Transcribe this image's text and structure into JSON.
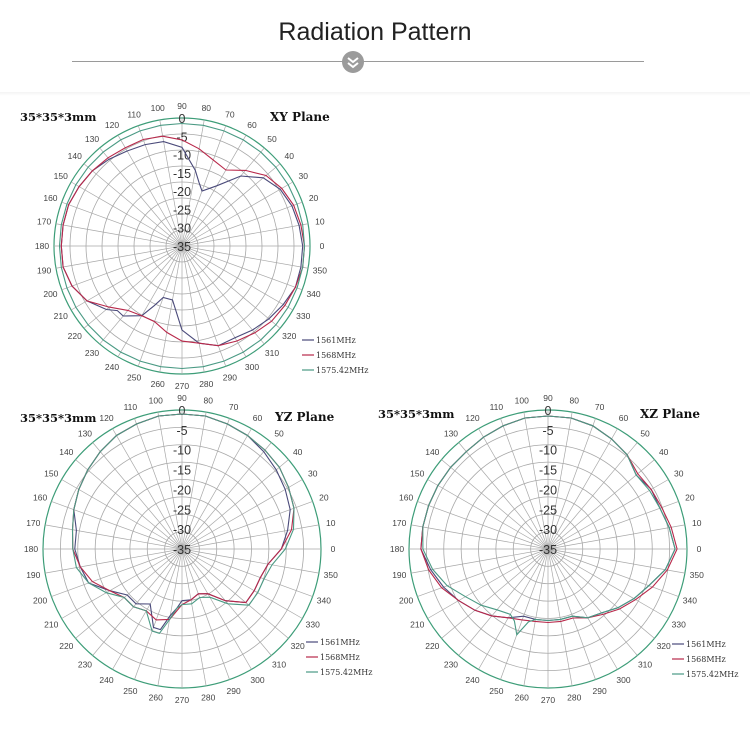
{
  "page": {
    "title": "Radiation Pattern"
  },
  "colors": {
    "s1561": "#4a4a7a",
    "s1568": "#b8284a",
    "s1575": "#4a9a84",
    "grid": "#a8a8a8",
    "outer": "#3d9d78"
  },
  "chart_data": [
    {
      "type": "polar-line",
      "size_label": "35*35*3mm",
      "title": "XY Plane",
      "r_ticks": [
        "0",
        "-5",
        "-10",
        "-15",
        "-20",
        "-25",
        "-30",
        "-35"
      ],
      "rlim": [
        -35,
        0
      ],
      "angle_ticks": [
        0,
        10,
        20,
        30,
        40,
        50,
        60,
        70,
        80,
        90,
        100,
        110,
        120,
        130,
        140,
        150,
        160,
        170,
        180,
        190,
        200,
        210,
        220,
        230,
        240,
        250,
        260,
        270,
        280,
        290,
        300,
        310,
        320,
        330,
        340,
        350
      ],
      "grid": true,
      "legend_position": "bottom-right",
      "series": [
        {
          "name": "1561MHz",
          "angles": [
            0,
            10,
            20,
            30,
            40,
            50,
            60,
            70,
            75,
            80,
            90,
            100,
            110,
            120,
            130,
            140,
            150,
            160,
            170,
            180,
            190,
            200,
            210,
            220,
            225,
            230,
            240,
            245,
            250,
            260,
            270,
            280,
            290,
            300,
            310,
            320,
            330,
            340,
            350
          ],
          "values": [
            -2,
            -2.5,
            -3,
            -4,
            -6,
            -10,
            -16,
            -19,
            -17,
            -14,
            -8,
            -6,
            -5.5,
            -5,
            -4,
            -3,
            -2.5,
            -2,
            -2,
            -2,
            -2,
            -3,
            -5,
            -8,
            -10,
            -10,
            -13,
            -17,
            -20,
            -20,
            -12,
            -8,
            -6,
            -6,
            -5,
            -4,
            -3,
            -2,
            -2
          ]
        },
        {
          "name": "1568MHz",
          "angles": [
            0,
            10,
            20,
            30,
            40,
            50,
            60,
            70,
            80,
            90,
            100,
            110,
            120,
            130,
            140,
            150,
            160,
            170,
            180,
            190,
            200,
            210,
            220,
            230,
            240,
            250,
            260,
            270,
            280,
            290,
            300,
            310,
            320,
            330,
            340,
            350
          ],
          "values": [
            -1.5,
            -2,
            -2.5,
            -3.5,
            -5,
            -8,
            -11,
            -10,
            -8,
            -6,
            -4.5,
            -4,
            -4,
            -3.5,
            -3,
            -2.5,
            -2,
            -2,
            -2,
            -2,
            -3,
            -5,
            -9,
            -12,
            -13,
            -13,
            -11,
            -9,
            -8,
            -6,
            -5,
            -4,
            -3,
            -2.5,
            -2,
            -1.5
          ]
        },
        {
          "name": "1575.42MHz",
          "angles": [
            0,
            10,
            20,
            30,
            40,
            50,
            60,
            70,
            80,
            90,
            100,
            110,
            120,
            130,
            140,
            150,
            160,
            170,
            180,
            190,
            200,
            210,
            220,
            230,
            240,
            250,
            260,
            270,
            280,
            290,
            300,
            310,
            320,
            330,
            340,
            350
          ],
          "values": [
            -1.5,
            -1.5,
            -1.5,
            -1.5,
            -1.5,
            -1.5,
            -1.5,
            -1.5,
            -1.5,
            -1.5,
            -1.5,
            -1.5,
            -1.5,
            -1.5,
            -1.5,
            -1.5,
            -1.5,
            -1.5,
            -1.5,
            -1.5,
            -1.5,
            -1.5,
            -1.5,
            -1.5,
            -1.5,
            -1.5,
            -1.5,
            -1.5,
            -1.5,
            -1.5,
            -1.5,
            -1.5,
            -1.5,
            -1.5,
            -1.5,
            -1.5
          ]
        }
      ]
    },
    {
      "type": "polar-line",
      "size_label": "35*35*3mm",
      "title": "YZ Plane",
      "r_ticks": [
        "0",
        "-5",
        "-10",
        "-15",
        "-20",
        "-25",
        "-30",
        "-35"
      ],
      "rlim": [
        -35,
        0
      ],
      "angle_ticks": [
        0,
        10,
        20,
        30,
        40,
        50,
        60,
        70,
        80,
        90,
        100,
        110,
        120,
        130,
        140,
        150,
        160,
        170,
        180,
        190,
        200,
        210,
        220,
        230,
        240,
        250,
        260,
        270,
        280,
        290,
        300,
        310,
        320,
        330,
        340,
        350
      ],
      "grid": true,
      "legend_position": "bottom-right",
      "series": [
        {
          "name": "1561MHz",
          "angles": [
            0,
            10,
            20,
            30,
            40,
            50,
            60,
            70,
            80,
            90,
            100,
            110,
            120,
            130,
            140,
            150,
            160,
            170,
            180,
            190,
            200,
            210,
            220,
            230,
            240,
            250,
            255,
            260,
            265,
            270,
            280,
            290,
            300,
            310,
            320,
            330,
            340,
            350
          ],
          "values": [
            -10,
            -8,
            -6,
            -5,
            -4,
            -3,
            -2,
            -1.5,
            -1,
            -1,
            -1,
            -1.5,
            -2,
            -3,
            -4,
            -5,
            -6,
            -8,
            -8,
            -9,
            -10,
            -14,
            -17,
            -17,
            -19,
            -14,
            -14,
            -18,
            -20,
            -22,
            -22,
            -23,
            -22,
            -18,
            -14,
            -14,
            -14,
            -13
          ]
        },
        {
          "name": "1568MHz",
          "angles": [
            0,
            10,
            20,
            30,
            40,
            50,
            60,
            70,
            80,
            90,
            100,
            110,
            120,
            130,
            140,
            150,
            160,
            170,
            180,
            190,
            200,
            210,
            220,
            230,
            240,
            250,
            260,
            270,
            280,
            290,
            300,
            310,
            320,
            330,
            340,
            350
          ],
          "values": [
            -10,
            -7,
            -5,
            -4,
            -3,
            -2.5,
            -2,
            -1.5,
            -1,
            -1,
            -1,
            -1.5,
            -2,
            -3,
            -4,
            -5,
            -6,
            -7,
            -7.5,
            -9,
            -11,
            -14,
            -16,
            -16,
            -17,
            -16,
            -17,
            -21,
            -22,
            -23,
            -22,
            -18,
            -14,
            -14,
            -14,
            -13
          ]
        },
        {
          "name": "1575.42MHz",
          "angles": [
            0,
            10,
            20,
            30,
            40,
            50,
            60,
            70,
            80,
            90,
            100,
            110,
            120,
            130,
            140,
            150,
            160,
            170,
            180,
            190,
            200,
            210,
            220,
            230,
            240,
            250,
            255,
            260,
            265,
            270,
            280,
            290,
            300,
            310,
            320,
            330,
            340,
            350
          ],
          "values": [
            -9,
            -6.5,
            -5,
            -4,
            -3,
            -2.5,
            -2,
            -1.5,
            -1,
            -1,
            -1,
            -1.5,
            -2,
            -3,
            -4,
            -5,
            -6,
            -7,
            -7.5,
            -8,
            -10,
            -13,
            -16,
            -16,
            -17,
            -13,
            -13,
            -17,
            -20,
            -21,
            -21,
            -22,
            -21,
            -17,
            -13,
            -13,
            -13,
            -12
          ]
        }
      ]
    },
    {
      "type": "polar-line",
      "size_label": "35*35*3mm",
      "title": "XZ Plane",
      "r_ticks": [
        "0",
        "-5",
        "-10",
        "-15",
        "-20",
        "-25",
        "-30",
        "-35"
      ],
      "rlim": [
        -35,
        0
      ],
      "angle_ticks": [
        0,
        10,
        20,
        30,
        40,
        50,
        60,
        70,
        80,
        90,
        100,
        110,
        120,
        130,
        140,
        150,
        160,
        170,
        180,
        190,
        200,
        210,
        220,
        230,
        240,
        250,
        260,
        270,
        280,
        290,
        300,
        310,
        320,
        330,
        340,
        350
      ],
      "grid": true,
      "legend_position": "bottom-right",
      "series": [
        {
          "name": "1561MHz",
          "angles": [
            0,
            10,
            20,
            30,
            40,
            50,
            60,
            70,
            80,
            90,
            100,
            110,
            120,
            130,
            140,
            150,
            160,
            170,
            180,
            190,
            200,
            210,
            220,
            230,
            240,
            250,
            260,
            270,
            280,
            290,
            300,
            310,
            320,
            330,
            340,
            350
          ],
          "values": [
            -3,
            -4,
            -5,
            -5,
            -6,
            -4,
            -3,
            -2,
            -1.5,
            -1.5,
            -1.5,
            -2,
            -2.5,
            -3,
            -3,
            -3,
            -3,
            -3,
            -3,
            -5,
            -7,
            -9,
            -11,
            -13,
            -15,
            -17,
            -17,
            -17,
            -17,
            -17,
            -15,
            -14,
            -12,
            -10,
            -8,
            -5
          ]
        },
        {
          "name": "1568MHz",
          "angles": [
            0,
            10,
            20,
            30,
            40,
            50,
            60,
            70,
            80,
            90,
            100,
            110,
            120,
            130,
            140,
            150,
            160,
            170,
            180,
            190,
            200,
            210,
            220,
            230,
            240,
            250,
            260,
            270,
            280,
            290,
            300,
            310,
            320,
            330,
            340,
            350
          ],
          "values": [
            -2.5,
            -3.5,
            -4.5,
            -5,
            -5.5,
            -4,
            -3,
            -2,
            -1.5,
            -1.5,
            -1.5,
            -2,
            -2.5,
            -3,
            -3,
            -3,
            -3,
            -3,
            -3,
            -4.5,
            -6.5,
            -9,
            -11,
            -13,
            -15,
            -16,
            -16.5,
            -16.5,
            -16.5,
            -16.5,
            -15,
            -13.5,
            -11.5,
            -9.5,
            -7,
            -4.5
          ]
        },
        {
          "name": "1575.42MHz",
          "angles": [
            0,
            10,
            20,
            30,
            40,
            50,
            60,
            70,
            80,
            90,
            100,
            110,
            120,
            130,
            140,
            150,
            160,
            170,
            180,
            190,
            200,
            210,
            220,
            230,
            240,
            245,
            250,
            255,
            260,
            270,
            280,
            290,
            300,
            310,
            320,
            330,
            340,
            350
          ],
          "values": [
            -3,
            -4,
            -5,
            -5.5,
            -6,
            -4,
            -3,
            -2,
            -1.5,
            -1.5,
            -1.5,
            -2,
            -2.5,
            -3,
            -3,
            -3,
            -3,
            -3,
            -3.5,
            -5.5,
            -8,
            -11,
            -13,
            -15,
            -16,
            -15,
            -12,
            -16,
            -17,
            -17,
            -17,
            -17,
            -15,
            -14,
            -12,
            -10,
            -8,
            -5
          ]
        }
      ]
    }
  ]
}
